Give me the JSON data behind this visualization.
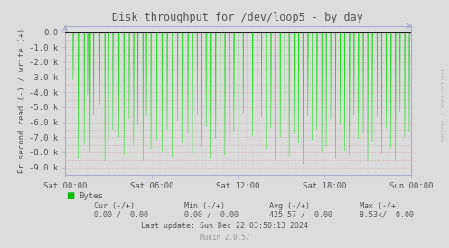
{
  "title": "Disk throughput for /dev/loop5 - by day",
  "ylabel": "Pr second read (-) / write (+)",
  "background_color": "#dcdcdc",
  "plot_bg_color": "#dcdcdc",
  "grid_color_h": "#cc8888",
  "grid_color_v": "#cccccc",
  "line_color": "#00dd00",
  "axis_color": "#aaaacc",
  "text_color": "#555555",
  "ylim": [
    -9500,
    400
  ],
  "yticks": [
    0,
    -1000,
    -2000,
    -3000,
    -4000,
    -5000,
    -6000,
    -7000,
    -8000,
    -9000
  ],
  "ytick_labels": [
    "0.0",
    "-1.0 k",
    "-2.0 k",
    "-3.0 k",
    "-4.0 k",
    "-5.0 k",
    "-6.0 k",
    "-7.0 k",
    "-8.0 k",
    "-9.0 k"
  ],
  "xtick_labels": [
    "Sat 00:00",
    "Sat 06:00",
    "Sat 12:00",
    "Sat 18:00",
    "Sun 00:00"
  ],
  "rrdtool_label": "RRDTOOL / TOBI OETIKER",
  "legend_label": "Bytes",
  "legend_color": "#00bb00",
  "footer_line3": "Last update: Sun Dec 22 03:50:13 2024",
  "footer_munin": "Munin 2.0.57",
  "spike_positions": [
    0.023,
    0.038,
    0.055,
    0.065,
    0.072,
    0.082,
    0.1,
    0.115,
    0.125,
    0.138,
    0.155,
    0.17,
    0.185,
    0.198,
    0.21,
    0.225,
    0.235,
    0.248,
    0.265,
    0.28,
    0.295,
    0.31,
    0.325,
    0.34,
    0.355,
    0.368,
    0.382,
    0.395,
    0.408,
    0.422,
    0.435,
    0.448,
    0.462,
    0.475,
    0.488,
    0.502,
    0.515,
    0.528,
    0.542,
    0.555,
    0.568,
    0.582,
    0.595,
    0.608,
    0.622,
    0.635,
    0.648,
    0.662,
    0.675,
    0.688,
    0.702,
    0.715,
    0.728,
    0.742,
    0.755,
    0.768,
    0.782,
    0.795,
    0.808,
    0.822,
    0.835,
    0.848,
    0.862,
    0.875,
    0.888,
    0.902,
    0.915,
    0.928,
    0.942,
    0.955,
    0.968,
    0.982,
    0.995
  ],
  "spike_depths": [
    -3200,
    -8400,
    -7500,
    -4200,
    -8000,
    -5500,
    -4800,
    -8600,
    -7200,
    -6500,
    -7000,
    -8200,
    -5800,
    -7500,
    -6200,
    -8500,
    -5600,
    -7800,
    -7200,
    -8000,
    -6500,
    -8300,
    -5900,
    -7400,
    -6800,
    -8100,
    -5500,
    -7600,
    -6300,
    -8400,
    -7100,
    -5800,
    -8200,
    -7500,
    -6600,
    -8700,
    -5400,
    -7300,
    -6900,
    -8100,
    -5700,
    -7800,
    -6400,
    -8500,
    -7000,
    -5900,
    -8300,
    -6700,
    -7400,
    -8800,
    -5600,
    -7200,
    -6500,
    -8000,
    -7600,
    -5800,
    -8400,
    -6200,
    -7900,
    -8200,
    -5500,
    -7100,
    -6800,
    -8600,
    -7300,
    -5700,
    -8100,
    -6400,
    -7700,
    -8500,
    -5300,
    -7000,
    -6600
  ]
}
